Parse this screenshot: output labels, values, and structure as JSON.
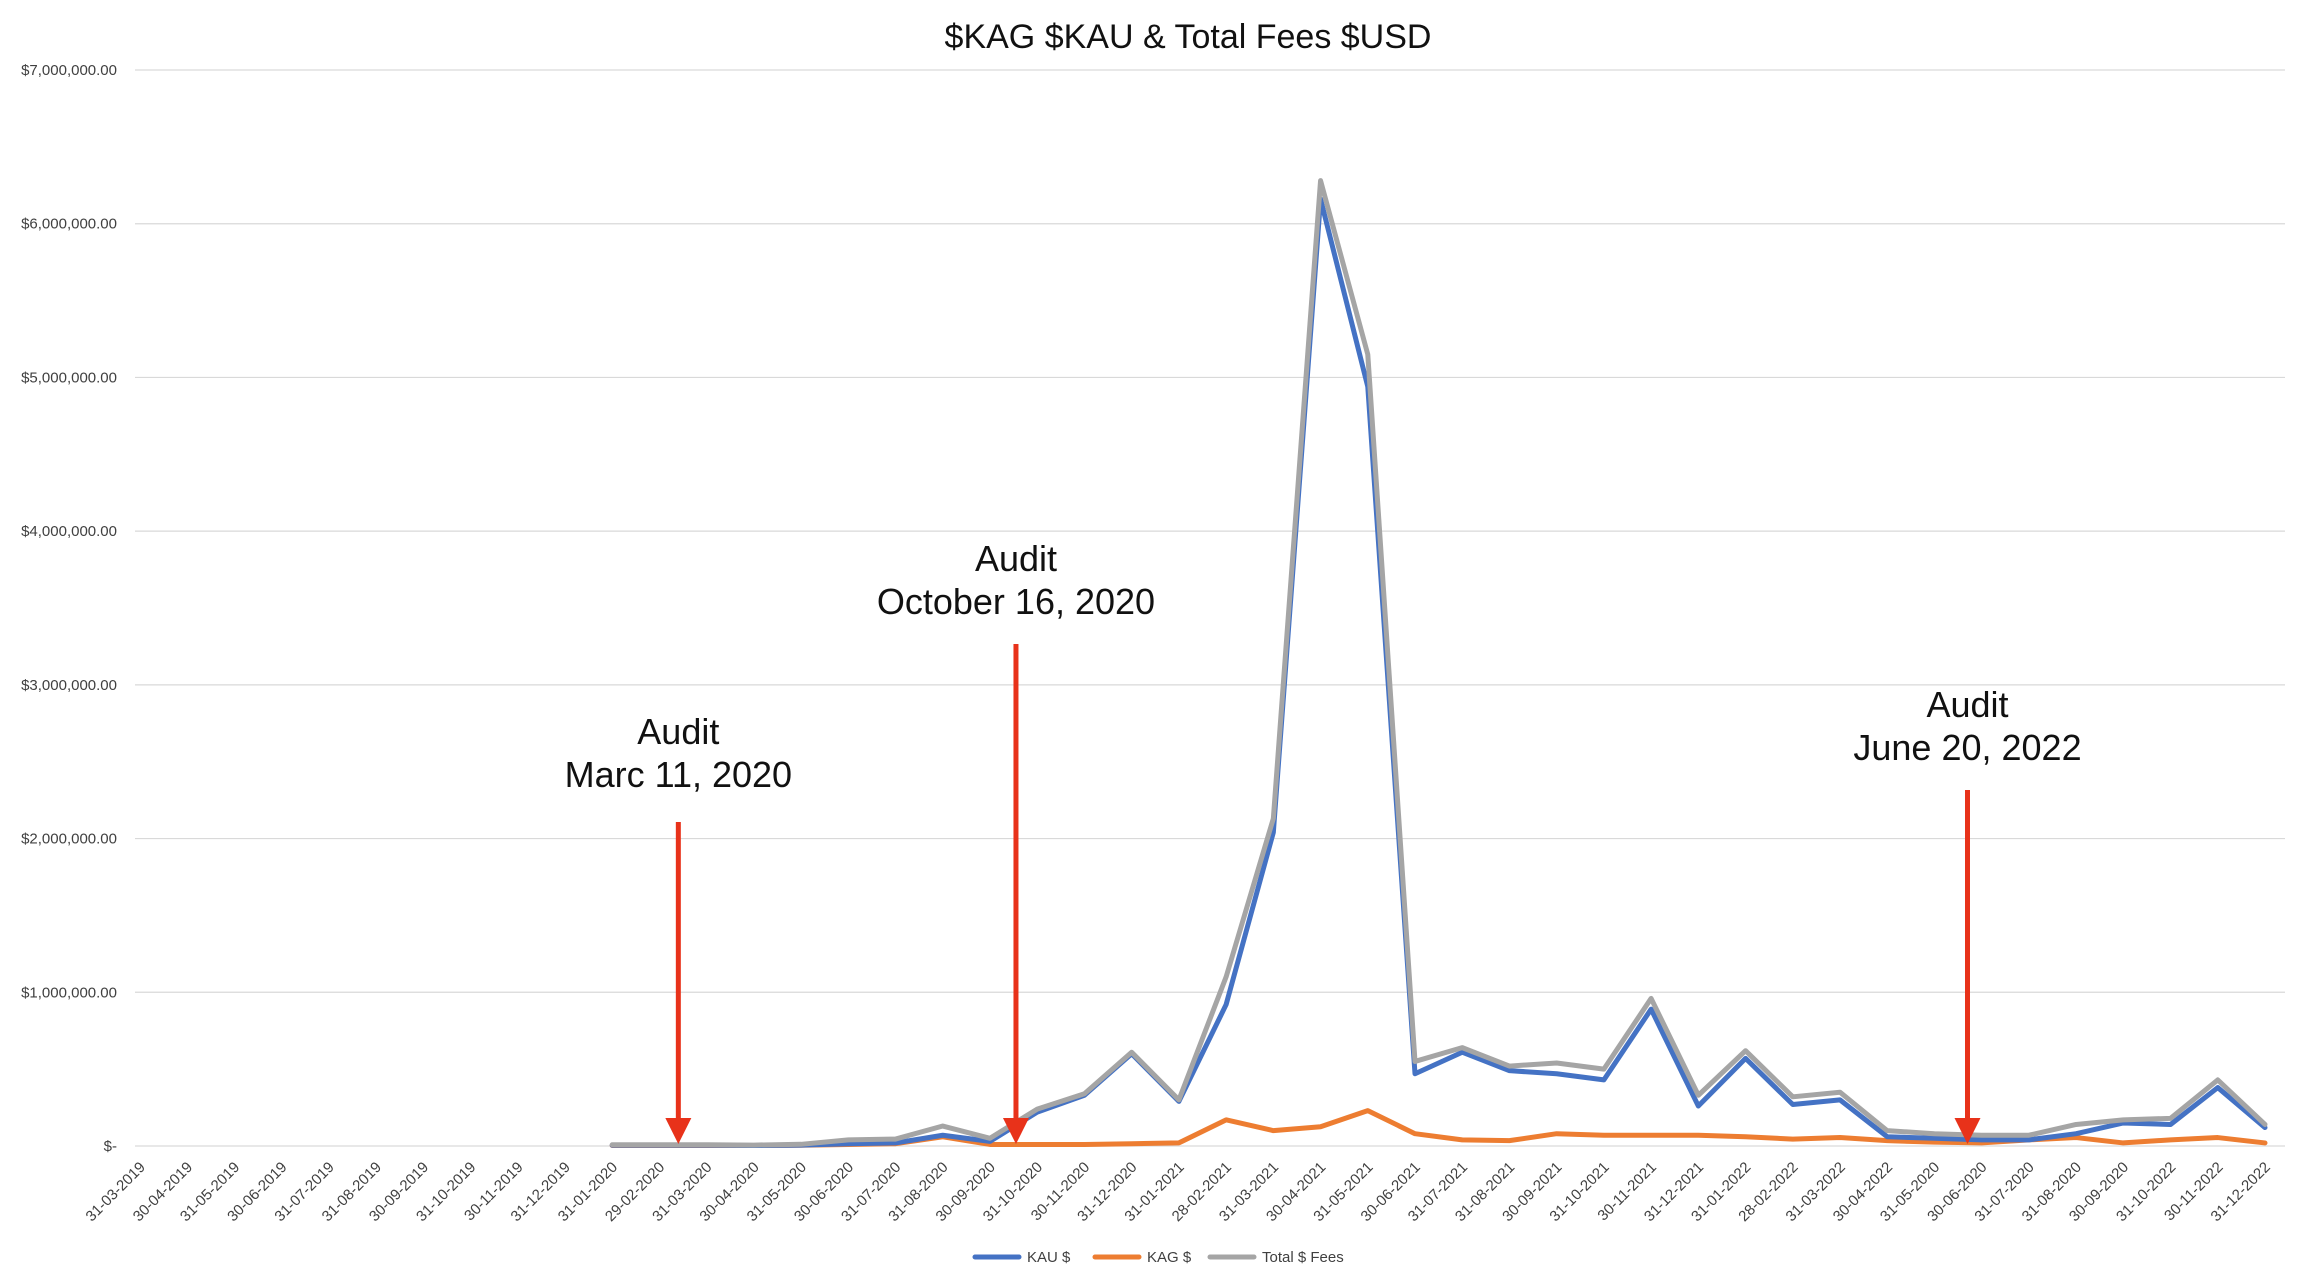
{
  "chart_data": {
    "type": "line",
    "title": "$KAG $KAU & Total Fees $USD",
    "xlabel": "",
    "ylabel": "",
    "ylim": [
      0,
      7000000
    ],
    "y_ticks": [
      {
        "value": 0,
        "label": "$-"
      },
      {
        "value": 1000000,
        "label": "$1,000,000.00"
      },
      {
        "value": 2000000,
        "label": "$2,000,000.00"
      },
      {
        "value": 3000000,
        "label": "$3,000,000.00"
      },
      {
        "value": 4000000,
        "label": "$4,000,000.00"
      },
      {
        "value": 5000000,
        "label": "$5,000,000.00"
      },
      {
        "value": 6000000,
        "label": "$6,000,000.00"
      },
      {
        "value": 7000000,
        "label": "$7,000,000.00"
      }
    ],
    "grid": true,
    "legend_position": "bottom-center",
    "categories": [
      "31-03-2019",
      "30-04-2019",
      "31-05-2019",
      "30-06-2019",
      "31-07-2019",
      "31-08-2019",
      "30-09-2019",
      "31-10-2019",
      "30-11-2019",
      "31-12-2019",
      "31-01-2020",
      "29-02-2020",
      "31-03-2020",
      "30-04-2020",
      "31-05-2020",
      "30-06-2020",
      "31-07-2020",
      "31-08-2020",
      "30-09-2020",
      "31-10-2020",
      "30-11-2020",
      "31-12-2020",
      "31-01-2021",
      "28-02-2021",
      "31-03-2021",
      "30-04-2021",
      "31-05-2021",
      "30-06-2021",
      "31-07-2021",
      "31-08-2021",
      "30-09-2021",
      "31-10-2021",
      "30-11-2021",
      "31-12-2021",
      "31-01-2022",
      "28-02-2022",
      "31-03-2022",
      "30-04-2022",
      "31-05-2020",
      "30-06-2020",
      "31-07-2020",
      "31-08-2020",
      "30-09-2020",
      "31-10-2022",
      "30-11-2022",
      "31-12-2022"
    ],
    "series": [
      {
        "name": "KAU $",
        "color": "#4472c4",
        "values": [
          null,
          null,
          null,
          null,
          null,
          null,
          null,
          null,
          null,
          null,
          5000,
          5000,
          5000,
          3000,
          6000,
          15000,
          20000,
          70000,
          30000,
          220000,
          330000,
          600000,
          290000,
          920000,
          2040000,
          6160000,
          4940000,
          470000,
          610000,
          490000,
          470000,
          430000,
          890000,
          260000,
          570000,
          270000,
          300000,
          60000,
          50000,
          40000,
          40000,
          80000,
          150000,
          140000,
          380000,
          120000
        ]
      },
      {
        "name": "KAG $",
        "color": "#ed7d31",
        "values": [
          null,
          null,
          null,
          null,
          null,
          null,
          null,
          null,
          null,
          null,
          3000,
          3000,
          3000,
          3000,
          5000,
          10000,
          15000,
          60000,
          10000,
          10000,
          10000,
          15000,
          20000,
          170000,
          100000,
          125000,
          230000,
          80000,
          40000,
          35000,
          80000,
          70000,
          70000,
          70000,
          60000,
          45000,
          55000,
          35000,
          25000,
          20000,
          40000,
          55000,
          20000,
          40000,
          55000,
          20000
        ]
      },
      {
        "name": "Total $ Fees",
        "color": "#a5a5a5",
        "values": [
          null,
          null,
          null,
          null,
          null,
          null,
          null,
          null,
          null,
          null,
          8000,
          8000,
          8000,
          6000,
          11000,
          40000,
          45000,
          130000,
          50000,
          240000,
          340000,
          610000,
          300000,
          1100000,
          2130000,
          6280000,
          5150000,
          550000,
          640000,
          520000,
          540000,
          500000,
          960000,
          330000,
          620000,
          320000,
          350000,
          100000,
          80000,
          70000,
          70000,
          140000,
          170000,
          180000,
          430000,
          140000
        ]
      }
    ],
    "annotations": [
      {
        "title": "Audit",
        "subtitle": "Marc 11, 2020",
        "at_category_index": 11.4
      },
      {
        "title": "Audit",
        "subtitle": "October 16, 2020",
        "at_category_index": 18.55
      },
      {
        "title": "Audit",
        "subtitle": "June 20, 2022",
        "at_category_index": 38.7
      }
    ],
    "annotation_color": "#e8321a"
  }
}
